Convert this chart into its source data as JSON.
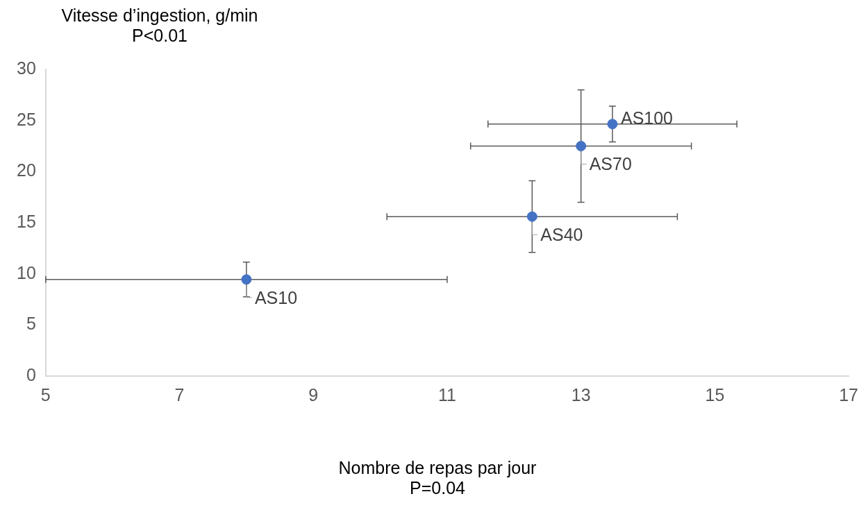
{
  "chart_data": {
    "type": "scatter",
    "ylabel": "Vitesse d’ingestion, g/min",
    "xlabel": "Nombre de repas par jour",
    "annotations": [
      "P<0.01",
      "P=0.04",
      {
        "text": "AS10",
        "x": 8.0,
        "y": 9.45
      },
      {
        "text": "AS40",
        "x": 12.27,
        "y": 15.6
      },
      {
        "text": "AS70",
        "x": 13.0,
        "y": 22.5
      },
      {
        "text": "AS100",
        "x": 13.47,
        "y": 24.65
      }
    ],
    "x": [
      8.0,
      12.27,
      13.0,
      13.47
    ],
    "series": [
      {
        "color": "#4472c4",
        "values": [
          9.45,
          15.6,
          22.5,
          24.65
        ],
        "errors": [
          1.7,
          3.5,
          5.5,
          1.75
        ],
        "xerrors": [
          3.0,
          2.17,
          1.65,
          1.86
        ]
      }
    ],
    "xlim": [
      5,
      17
    ],
    "ylim": [
      0,
      30
    ],
    "xticks": [
      5,
      7,
      9,
      11,
      13,
      15,
      17
    ],
    "yticks": [
      0,
      5,
      10,
      15,
      20,
      25,
      30
    ],
    "grid": false,
    "legend": false,
    "marker": "circle"
  }
}
